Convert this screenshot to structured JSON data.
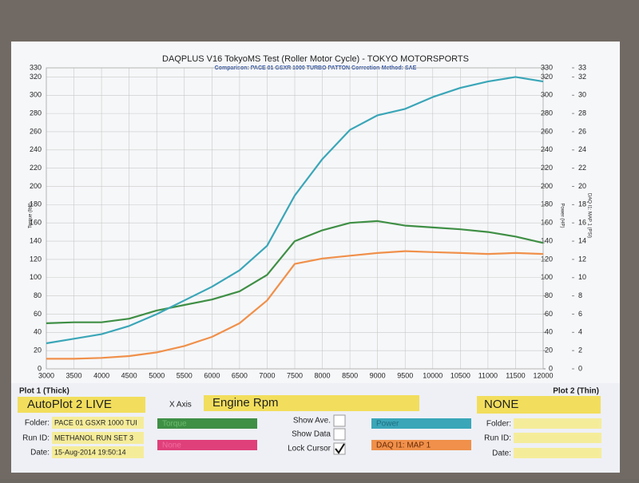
{
  "chart_data": {
    "type": "line",
    "title": "DAQPLUS V16 TokyoMS Test (Roller Motor Cycle) - TOKYO MOTORSPORTS",
    "subtitle": "Comparison: PACE 01 GSXR 1000 TURBO PATTON      Correction-Method: SAE",
    "y_label": "Torque (lbft)",
    "y_right_label": "Power (HP)",
    "y2_label": "DAQ I1: MAP 1 (PSI)",
    "x": [
      3000,
      3500,
      4000,
      4500,
      5000,
      5500,
      6000,
      6500,
      7000,
      7500,
      8000,
      8500,
      9000,
      9500,
      10000,
      10500,
      11000,
      11500,
      12000
    ],
    "xlim": [
      3000,
      12000
    ],
    "xticks": [
      3000,
      3500,
      4000,
      4500,
      5000,
      5500,
      6000,
      6500,
      7000,
      7500,
      8000,
      8500,
      9000,
      9500,
      10000,
      10500,
      11000,
      11500,
      12000
    ],
    "ylim": [
      0,
      330
    ],
    "yticks": [
      0,
      20,
      40,
      60,
      80,
      100,
      120,
      140,
      160,
      180,
      200,
      220,
      240,
      260,
      280,
      300,
      320,
      330
    ],
    "y_right_ticks": [
      0,
      20,
      40,
      60,
      80,
      100,
      120,
      140,
      160,
      180,
      200,
      220,
      240,
      260,
      280,
      300,
      320,
      330
    ],
    "y2lim": [
      0,
      33
    ],
    "y2ticks": [
      0,
      2,
      4,
      6,
      8,
      10,
      12,
      14,
      16,
      18,
      20,
      22,
      24,
      26,
      28,
      30,
      32,
      33
    ],
    "grid": true,
    "series": [
      {
        "name": "Torque",
        "color": "#3f8f45",
        "values": [
          50,
          51,
          51,
          55,
          64,
          70,
          76,
          85,
          103,
          140,
          152,
          160,
          162,
          157,
          155,
          153,
          150,
          145,
          138
        ]
      },
      {
        "name": "Power",
        "color": "#3aa6b8",
        "values": [
          28,
          33,
          38,
          47,
          60,
          75,
          90,
          108,
          135,
          190,
          230,
          262,
          278,
          285,
          298,
          308,
          315,
          320,
          315
        ]
      },
      {
        "name": "DAQ I1: MAP 1",
        "color": "#f0904a",
        "axis": "y2",
        "values": [
          1.1,
          1.1,
          1.2,
          1.4,
          1.8,
          2.5,
          3.5,
          5.0,
          7.5,
          11.5,
          12.1,
          12.4,
          12.7,
          12.9,
          12.8,
          12.7,
          12.6,
          12.7,
          12.6
        ]
      }
    ]
  },
  "panel": {
    "plot1_title": "Plot 1 (Thick)",
    "plot1_select": "AutoPlot 2 LIVE",
    "x_axis_label": "X Axis",
    "x_axis_select": "Engine Rpm",
    "plot2_title": "Plot 2 (Thin)",
    "plot2_select": "NONE",
    "folder_label": "Folder:",
    "folder": "PACE 01 GSXR 1000 TUI",
    "run_label": "Run ID:",
    "run": "METHANOL RUN SET 3",
    "date_label": "Date:",
    "date": "15-Aug-2014 19:50:14",
    "extra_channel": "None",
    "show_ave": "Show Ave.",
    "show_data": "Show Data",
    "lock_cursor": "Lock Cursor",
    "folder2_label": "Folder:",
    "run2_label": "Run ID:",
    "date2_label": "Date:"
  }
}
